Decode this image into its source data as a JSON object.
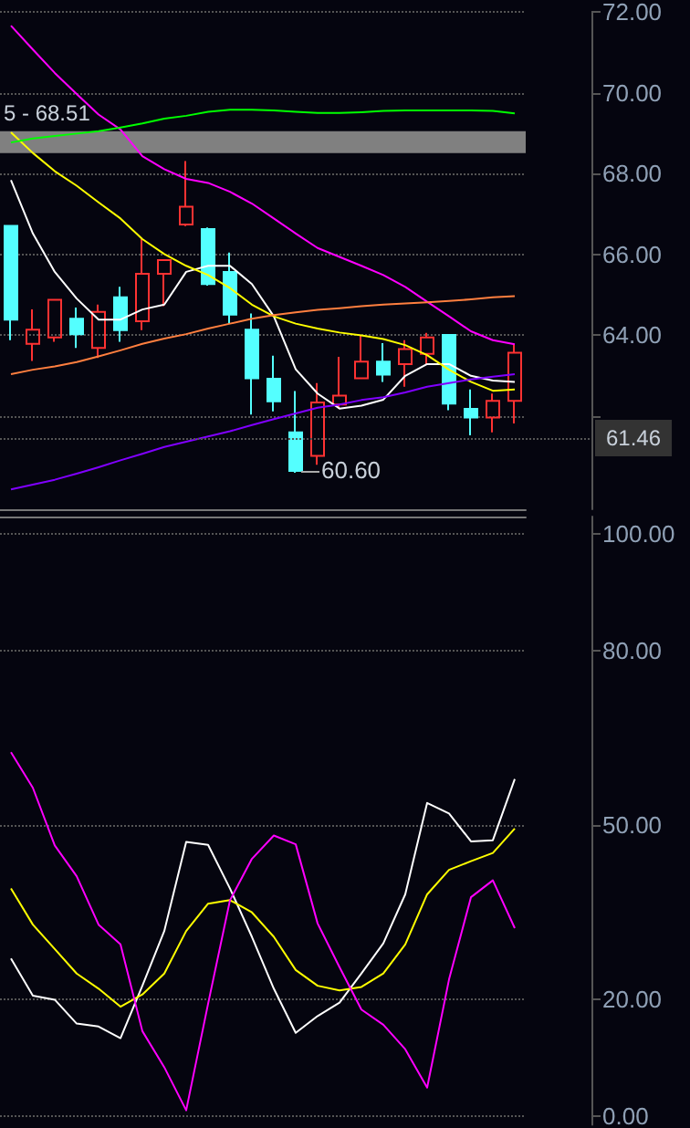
{
  "chart_data": [
    {
      "type": "candlestick",
      "categories": [
        null,
        null,
        null,
        null,
        null,
        null,
        null,
        null,
        null,
        null,
        null,
        null,
        null,
        null,
        null,
        null,
        null,
        null,
        null,
        null,
        null,
        null,
        null,
        null
      ],
      "ohlc": [
        [
          66.71,
          66.71,
          63.88,
          64.39
        ],
        [
          63.79,
          64.64,
          63.37,
          64.14
        ],
        [
          63.95,
          64.88,
          63.84,
          64.88
        ],
        [
          64.41,
          64.69,
          63.69,
          64.03
        ],
        [
          63.69,
          64.76,
          63.44,
          64.58
        ],
        [
          64.94,
          65.2,
          63.84,
          64.13
        ],
        [
          64.35,
          66.41,
          64.13,
          65.52
        ],
        [
          65.52,
          65.86,
          64.72,
          65.86
        ],
        [
          66.74,
          68.31,
          66.7,
          67.18
        ],
        [
          66.63,
          66.67,
          65.23,
          65.27
        ],
        [
          65.57,
          66.05,
          64.28,
          64.51
        ],
        [
          64.14,
          64.54,
          62.04,
          62.94
        ],
        [
          62.93,
          63.5,
          62.12,
          62.37
        ],
        [
          61.6,
          62.62,
          60.6,
          60.65
        ],
        [
          61.02,
          62.82,
          60.8,
          62.34
        ],
        [
          62.29,
          63.47,
          62.19,
          62.51
        ],
        [
          62.94,
          64.01,
          62.94,
          63.35
        ],
        [
          63.35,
          63.81,
          62.85,
          63.03
        ],
        [
          63.29,
          63.88,
          62.73,
          63.66
        ],
        [
          63.54,
          64.06,
          63.29,
          63.95
        ],
        [
          64.01,
          64.01,
          62.15,
          62.31
        ],
        [
          62.18,
          62.66,
          61.53,
          61.97
        ],
        [
          61.97,
          62.56,
          61.6,
          62.38
        ],
        [
          62.38,
          63.76,
          61.82,
          63.57
        ]
      ],
      "colors": [
        "#54ffff",
        "#ff3232",
        "#ff3232",
        "#54ffff",
        "#ff3232",
        "#54ffff",
        "#ff3232",
        "#ff3232",
        "#ff3232",
        "#54ffff",
        "#54ffff",
        "#54ffff",
        "#54ffff",
        "#54ffff",
        "#ff3232",
        "#ff3232",
        "#ff3232",
        "#54ffff",
        "#ff3232",
        "#ff3232",
        "#54ffff",
        "#54ffff",
        "#ff3232",
        "#ff3232"
      ],
      "series": [
        {
          "type": "line",
          "color": "#ffffff",
          "values": [
            67.84,
            66.52,
            65.57,
            64.91,
            64.39,
            64.39,
            64.64,
            64.76,
            65.57,
            65.72,
            65.72,
            65.27,
            64.47,
            63.16,
            62.56,
            62.19,
            62.26,
            62.41,
            63.0,
            63.29,
            63.29,
            63.0,
            62.88,
            62.85
          ]
        },
        {
          "type": "line",
          "color": "#ffff00",
          "values": [
            69.02,
            68.51,
            68.06,
            67.7,
            67.29,
            66.89,
            66.38,
            66.01,
            65.72,
            65.49,
            65.17,
            64.76,
            64.47,
            64.29,
            64.17,
            64.07,
            64.0,
            63.91,
            63.76,
            63.51,
            63.15,
            62.85,
            62.63,
            62.66
          ]
        },
        {
          "type": "line",
          "color": "#ff00ff",
          "values": [
            71.66,
            71.07,
            70.49,
            69.97,
            69.46,
            69.09,
            68.43,
            68.11,
            67.87,
            67.77,
            67.55,
            67.26,
            66.89,
            66.52,
            66.16,
            65.94,
            65.72,
            65.49,
            65.2,
            64.83,
            64.47,
            64.1,
            63.88,
            63.78
          ]
        },
        {
          "type": "line",
          "color": "#ff7f3f",
          "values": [
            63.04,
            63.15,
            63.23,
            63.34,
            63.48,
            63.63,
            63.79,
            63.92,
            64.03,
            64.17,
            64.29,
            64.41,
            64.5,
            64.57,
            64.63,
            64.67,
            64.72,
            64.76,
            64.79,
            64.82,
            64.85,
            64.89,
            64.94,
            64.97
          ]
        },
        {
          "type": "line",
          "color": "#00ff00",
          "values": [
            68.77,
            68.87,
            68.93,
            68.99,
            69.05,
            69.14,
            69.24,
            69.36,
            69.43,
            69.53,
            69.58,
            69.58,
            69.56,
            69.53,
            69.5,
            69.5,
            69.52,
            69.55,
            69.56,
            69.56,
            69.56,
            69.56,
            69.55,
            69.49
          ]
        },
        {
          "type": "line",
          "color": "#8000ff",
          "values": [
            60.19,
            60.31,
            60.43,
            60.58,
            60.74,
            60.91,
            61.07,
            61.24,
            61.37,
            61.5,
            61.63,
            61.78,
            61.93,
            62.07,
            62.21,
            62.29,
            62.4,
            62.47,
            62.59,
            62.73,
            62.82,
            62.91,
            62.98,
            63.04
          ]
        }
      ],
      "ylim": [
        59.7,
        72
      ],
      "yticks": [
        {
          "value": 62,
          "label": null
        },
        {
          "value": 64,
          "label": "64.00"
        },
        {
          "value": 66,
          "label": "66.00"
        },
        {
          "value": 68,
          "label": "68.00"
        },
        {
          "value": 70,
          "label": "70.00"
        },
        {
          "value": 72,
          "label": "72.00"
        }
      ],
      "grid": "y",
      "tick_labels": "y",
      "marker": "none",
      "bands": [
        {
          "axis": "y",
          "from": 68.51,
          "to": 69.05,
          "label": "5 - 68.51",
          "color": "#808080"
        }
      ],
      "ref_lines": [
        {
          "axis": "y",
          "value": 61.46,
          "label": "61.46"
        }
      ],
      "annotations": [
        "60.60"
      ]
    },
    {
      "type": "line",
      "categories": [
        null,
        null,
        null,
        null,
        null,
        null,
        null,
        null,
        null,
        null,
        null,
        null,
        null,
        null,
        null,
        null,
        null,
        null,
        null,
        null,
        null,
        null,
        null,
        null
      ],
      "series": [
        {
          "color": "#ffffff",
          "values": [
            27.1,
            20.7,
            20.0,
            15.9,
            15.4,
            13.4,
            22.4,
            31.8,
            47.1,
            46.6,
            39.1,
            30.8,
            21.9,
            14.3,
            17.2,
            19.5,
            24.5,
            29.7,
            38.1,
            53.8,
            52.0,
            47.2,
            47.4,
            57.9
          ]
        },
        {
          "color": "#ffff00",
          "values": [
            39.1,
            32.9,
            28.7,
            24.5,
            21.9,
            18.8,
            20.9,
            24.5,
            31.8,
            36.5,
            37.1,
            35.0,
            30.8,
            25.1,
            22.4,
            21.6,
            22.2,
            24.5,
            29.5,
            38.1,
            42.3,
            43.8,
            45.2,
            49.4
          ]
        },
        {
          "color": "#ff00ff",
          "values": [
            62.5,
            56.4,
            46.5,
            41.2,
            32.9,
            29.5,
            14.6,
            8.4,
            1.0,
            19.3,
            37.1,
            44.2,
            48.2,
            46.7,
            33.1,
            25.6,
            18.3,
            15.7,
            11.5,
            4.9,
            23.5,
            37.6,
            40.5,
            32.3
          ]
        }
      ],
      "ylim": [
        -1.5,
        103
      ],
      "yticks": [
        {
          "value": 0,
          "label": "0.00"
        },
        {
          "value": 20,
          "label": "20.00"
        },
        {
          "value": 50,
          "label": "50.00"
        },
        {
          "value": 80,
          "label": "80.00"
        },
        {
          "value": 100,
          "label": "100.00"
        }
      ],
      "grid": "y",
      "tick_labels": "y",
      "marker": "none"
    }
  ]
}
